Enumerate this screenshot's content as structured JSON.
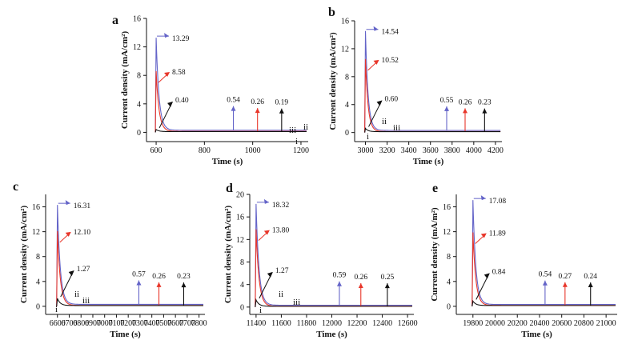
{
  "colors": {
    "blue": "#6464c8",
    "red": "#e8362a",
    "black": "#111111",
    "axis": "#111111"
  },
  "chart_data": [
    {
      "panel": "a",
      "type": "line",
      "xlabel": "Time (s)",
      "ylabel": "Current density (mA/cm²)",
      "xlim": [
        560,
        1230
      ],
      "ylim": [
        -1.3,
        16
      ],
      "xticks": [
        "600",
        "800",
        "1000",
        "1200"
      ],
      "yticks": [
        "0",
        "4",
        "8",
        "12",
        "16"
      ],
      "t0": 600,
      "series": [
        {
          "roman": "iii",
          "color": "blue",
          "peak": 13.29,
          "steady": 0.54,
          "pulse_x": 920
        },
        {
          "roman": "ii",
          "color": "red",
          "peak": 8.58,
          "steady": 0.26,
          "pulse_x": 1020
        },
        {
          "roman": "i",
          "color": "black",
          "peak": 0.4,
          "steady": 0.19,
          "pulse_x": 1120
        }
      ],
      "peak_labels": [
        "13.29",
        "8.58",
        "0.40"
      ],
      "steady_labels": [
        "0.54",
        "0.26",
        "0.19"
      ]
    },
    {
      "panel": "b",
      "type": "line",
      "xlabel": "Time (s)",
      "ylabel": "Current density (mA/cm²)",
      "xlim": [
        2900,
        4260
      ],
      "ylim": [
        -1.3,
        16
      ],
      "xticks": [
        "3000",
        "3200",
        "3400",
        "3600",
        "3800",
        "4000",
        "4200"
      ],
      "yticks": [
        "0",
        "4",
        "8",
        "12",
        "16"
      ],
      "t0": 3000,
      "series": [
        {
          "roman": "iii",
          "color": "blue",
          "peak": 14.54,
          "steady": 0.55,
          "pulse_x": 3750
        },
        {
          "roman": "ii",
          "color": "red",
          "peak": 10.52,
          "steady": 0.26,
          "pulse_x": 3920
        },
        {
          "roman": "i",
          "color": "black",
          "peak": 0.6,
          "steady": 0.23,
          "pulse_x": 4100
        }
      ],
      "peak_labels": [
        "14.54",
        "10.52",
        "0.60"
      ],
      "steady_labels": [
        "0.55",
        "0.26",
        "0.23"
      ]
    },
    {
      "panel": "c",
      "type": "line",
      "xlabel": "Time (s)",
      "ylabel": "Current density (mA/cm²)",
      "xlim": [
        6500,
        7850
      ],
      "ylim": [
        -1.3,
        18
      ],
      "xticks": [
        "6600",
        "6700",
        "6800",
        "6900",
        "7000",
        "7100",
        "7200",
        "7300",
        "7400",
        "7500",
        "7600",
        "7700",
        "7800"
      ],
      "yticks": [
        "0",
        "4",
        "8",
        "12",
        "16"
      ],
      "t0": 6600,
      "series": [
        {
          "roman": "iii",
          "color": "blue",
          "peak": 16.31,
          "steady": 0.57,
          "pulse_x": 7290
        },
        {
          "roman": "ii",
          "color": "red",
          "peak": 12.1,
          "steady": 0.26,
          "pulse_x": 7460
        },
        {
          "roman": "i",
          "color": "black",
          "peak": 1.27,
          "steady": 0.23,
          "pulse_x": 7670
        }
      ],
      "peak_labels": [
        "16.31",
        "12.10",
        "1.27"
      ],
      "steady_labels": [
        "0.57",
        "0.26",
        "0.23"
      ]
    },
    {
      "panel": "d",
      "type": "line",
      "xlabel": "Time (s)",
      "ylabel": "Current density (mA/cm²)",
      "xlim": [
        11350,
        12650
      ],
      "ylim": [
        -1.3,
        20
      ],
      "xticks": [
        "11400",
        "11600",
        "11800",
        "12000",
        "12200",
        "12400",
        "12600"
      ],
      "yticks": [
        "0",
        "4",
        "8",
        "12",
        "16",
        "20"
      ],
      "t0": 11400,
      "series": [
        {
          "roman": "iii",
          "color": "blue",
          "peak": 18.32,
          "steady": 0.59,
          "pulse_x": 12060
        },
        {
          "roman": "ii",
          "color": "red",
          "peak": 13.8,
          "steady": 0.26,
          "pulse_x": 12230
        },
        {
          "roman": "i",
          "color": "black",
          "peak": 1.27,
          "steady": 0.25,
          "pulse_x": 12440
        }
      ],
      "peak_labels": [
        "18.32",
        "13.80",
        "1.27"
      ],
      "steady_labels": [
        "0.59",
        "0.26",
        "0.25"
      ]
    },
    {
      "panel": "e",
      "type": "line",
      "xlabel": "Time (s)",
      "ylabel": "Current density (mA/m²)",
      "xlim": [
        19650,
        21100
      ],
      "ylim": [
        -1.3,
        18
      ],
      "xticks": [
        "19800",
        "20000",
        "20200",
        "20400",
        "20600",
        "20800",
        "21000"
      ],
      "yticks": [
        "0",
        "4",
        "8",
        "12",
        "16"
      ],
      "t0": 19800,
      "series": [
        {
          "roman": "",
          "color": "blue",
          "peak": 17.08,
          "steady": 0.54,
          "pulse_x": 20450
        },
        {
          "roman": "",
          "color": "red",
          "peak": 11.89,
          "steady": 0.27,
          "pulse_x": 20630
        },
        {
          "roman": "",
          "color": "black",
          "peak": 0.84,
          "steady": 0.24,
          "pulse_x": 20860
        }
      ],
      "peak_labels": [
        "17.08",
        "11.89",
        "0.84"
      ],
      "steady_labels": [
        "0.54",
        "0.27",
        "0.24"
      ]
    }
  ]
}
